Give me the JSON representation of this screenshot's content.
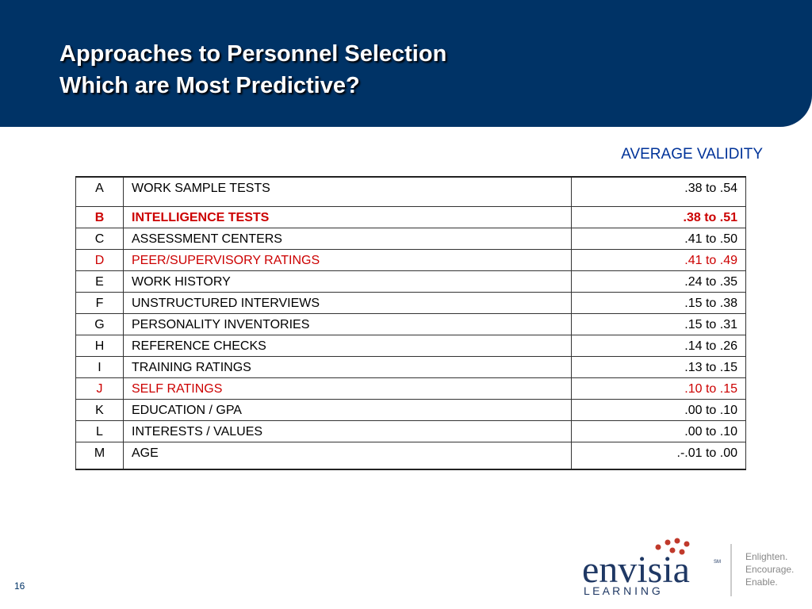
{
  "header": {
    "title_lines": [
      "Approaches to Personnel Selection",
      "Which are Most Predictive?"
    ]
  },
  "column_heading": "AVERAGE VALIDITY",
  "table": {
    "rows": [
      {
        "cells": [
          "A",
          "WORK SAMPLE TESTS",
          ".38 to .54"
        ]
      },
      {
        "cells": [
          "B",
          "INTELLIGENCE TESTS",
          ".38 to .51"
        ],
        "color": "#cc0000",
        "bold": true
      },
      {
        "cells": [
          "C",
          "ASSESSMENT CENTERS",
          ".41 to .50"
        ]
      },
      {
        "cells": [
          "D",
          "PEER/SUPERVISORY RATINGS",
          ".41 to .49"
        ],
        "color": "#cc0000"
      },
      {
        "cells": [
          "E",
          "WORK HISTORY",
          ".24 to .35"
        ]
      },
      {
        "cells": [
          "F",
          "UNSTRUCTURED INTERVIEWS",
          ".15 to .38"
        ]
      },
      {
        "cells": [
          "G",
          "PERSONALITY INVENTORIES",
          ".15 to .31"
        ]
      },
      {
        "cells": [
          "H",
          "REFERENCE CHECKS",
          ".14 to .26"
        ]
      },
      {
        "cells": [
          "I",
          "TRAINING RATINGS",
          ".13 to .15"
        ]
      },
      {
        "cells": [
          "J",
          "SELF RATINGS",
          ".10 to .15"
        ],
        "color": "#cc0000"
      },
      {
        "cells": [
          "K",
          "EDUCATION / GPA",
          ".00 to .10"
        ]
      },
      {
        "cells": [
          "L",
          "INTERESTS / VALUES",
          ".00 to .10"
        ]
      },
      {
        "cells": [
          "M",
          "AGE",
          ".-.01 to .00"
        ]
      }
    ]
  },
  "footer": {
    "page_number": "16",
    "logo": {
      "wordmark": "envisia",
      "mark": "SM",
      "subword": "L E A R N I N G",
      "tagline": [
        "Enlighten.",
        "Encourage.",
        "Enable."
      ]
    }
  }
}
